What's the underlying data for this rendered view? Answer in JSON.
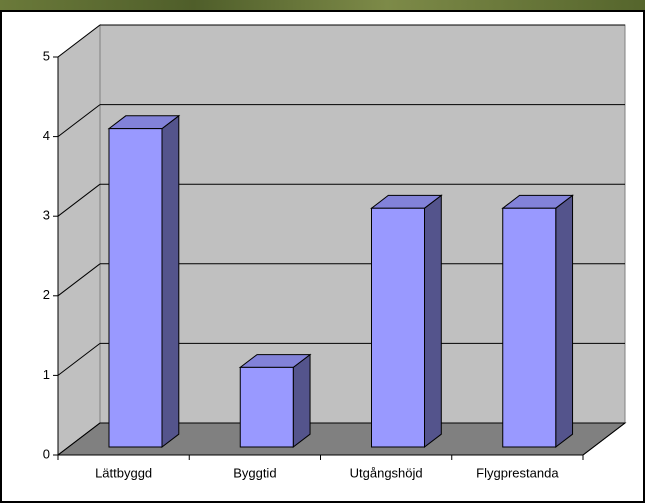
{
  "chart_data": {
    "type": "bar3d",
    "categories": [
      "Lättbyggd",
      "Byggtid",
      "Utgångshöjd",
      "Flygprestanda"
    ],
    "values": [
      4,
      1,
      3,
      3
    ],
    "color": "#9999ff",
    "ylim": [
      0,
      5
    ],
    "yticks": [
      0,
      1,
      2,
      3,
      4,
      5
    ],
    "grid": true
  }
}
